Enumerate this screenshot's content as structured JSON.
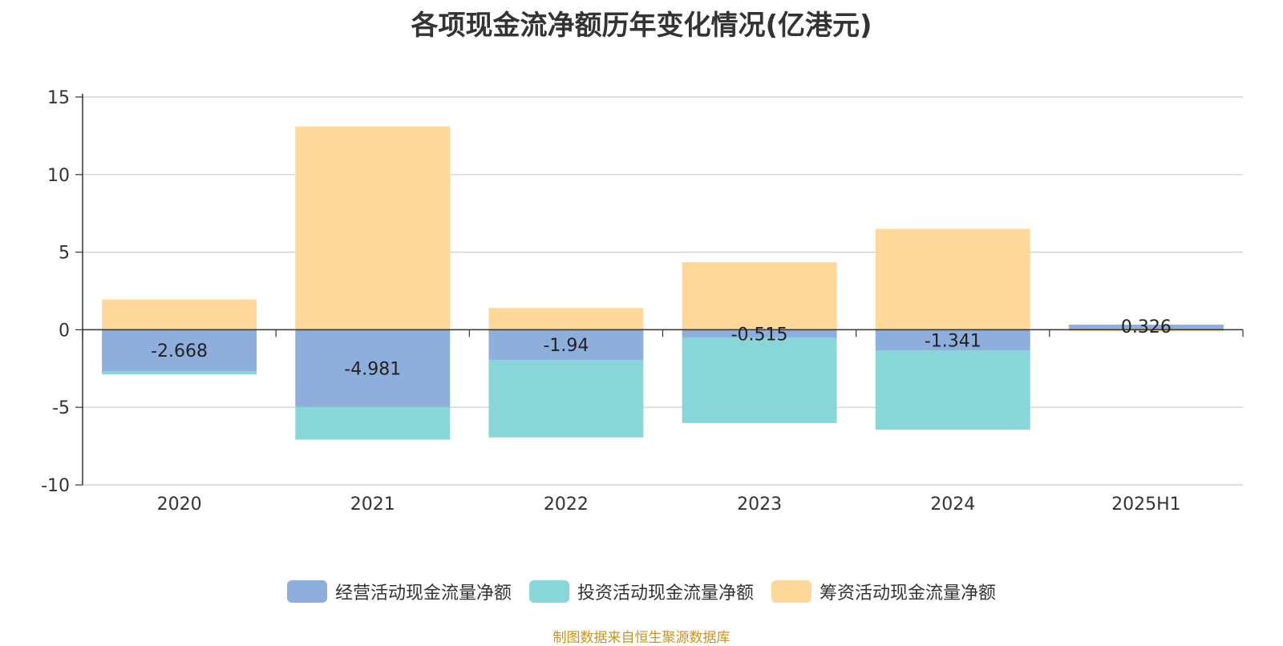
{
  "chart_data": {
    "type": "bar",
    "stacked": true,
    "title": "各项现金流净额历年变化情况(亿港元)",
    "categories": [
      "2020",
      "2021",
      "2022",
      "2023",
      "2024",
      "2025H1"
    ],
    "ylim": [
      -10,
      15
    ],
    "yticks": [
      15,
      10,
      5,
      0,
      -5,
      -10
    ],
    "grid": true,
    "legend_position": "bottom",
    "series": [
      {
        "name": "经营活动现金流量净额",
        "color": "#8eaedc",
        "values": [
          -2.668,
          -4.981,
          -1.94,
          -0.515,
          -1.341,
          0.326
        ],
        "labels": [
          "-2.668",
          "-4.981",
          "-1.94",
          "-0.515",
          "-1.341",
          "0.326"
        ]
      },
      {
        "name": "投资活动现金流量净额",
        "color": "#88d6d8",
        "values": [
          -0.2,
          -2.1,
          -5.0,
          -5.5,
          -5.1,
          0.0
        ]
      },
      {
        "name": "筹资活动现金流量净额",
        "color": "#fed899",
        "values": [
          1.95,
          13.1,
          1.4,
          4.35,
          6.5,
          -0.1
        ]
      }
    ]
  },
  "footer": {
    "source_note": "制图数据来自恒生聚源数据库"
  }
}
